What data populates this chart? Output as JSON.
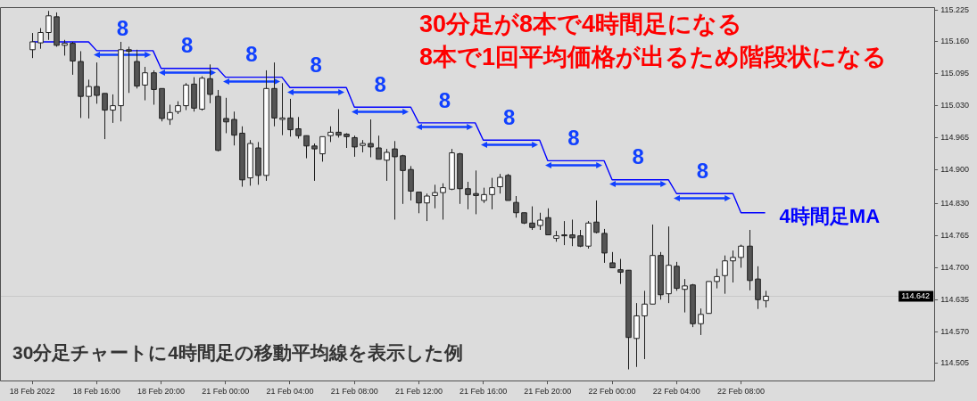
{
  "chart_data": {
    "type": "candlestick",
    "categories": [
      "18 Feb 2022",
      null,
      null,
      null,
      null,
      null,
      null,
      null,
      "18 Feb 16:00",
      null,
      null,
      null,
      null,
      null,
      null,
      null,
      "18 Feb 20:00",
      null,
      null,
      null,
      null,
      null,
      null,
      null,
      "21 Feb 00:00",
      null,
      null,
      null,
      null,
      null,
      null,
      null,
      "21 Feb 04:00",
      null,
      null,
      null,
      null,
      null,
      null,
      null,
      "21 Feb 08:00",
      null,
      null,
      null,
      null,
      null,
      null,
      null,
      "21 Feb 12:00",
      null,
      null,
      null,
      null,
      null,
      null,
      null,
      "21 Feb 16:00",
      null,
      null,
      null,
      null,
      null,
      null,
      null,
      "21 Feb 20:00",
      null,
      null,
      null,
      null,
      null,
      null,
      null,
      "22 Feb 00:00",
      null,
      null,
      null,
      null,
      null,
      null,
      null,
      "22 Feb 04:00",
      null,
      null,
      null,
      null,
      null,
      null,
      null,
      "22 Feb 08:00",
      null,
      null,
      null
    ],
    "ohlc": [
      [
        115.144,
        115.178,
        115.127,
        115.16
      ],
      [
        115.158,
        115.188,
        115.146,
        115.179
      ],
      [
        115.179,
        115.223,
        115.164,
        115.213
      ],
      [
        115.211,
        115.22,
        115.15,
        115.153
      ],
      [
        115.153,
        115.164,
        115.132,
        115.157
      ],
      [
        115.157,
        115.16,
        115.093,
        115.121
      ],
      [
        115.12,
        115.141,
        115.005,
        115.049
      ],
      [
        115.049,
        115.083,
        115.004,
        115.069
      ],
      [
        115.069,
        115.118,
        115.034,
        115.051
      ],
      [
        115.055,
        115.055,
        114.962,
        115.021
      ],
      [
        115.021,
        115.053,
        114.995,
        115.03
      ],
      [
        115.03,
        115.16,
        114.998,
        115.144
      ],
      [
        115.144,
        115.15,
        115.056,
        115.141
      ],
      [
        115.12,
        115.144,
        115.065,
        115.07
      ],
      [
        115.072,
        115.109,
        115.041,
        115.097
      ],
      [
        115.097,
        115.102,
        115.032,
        115.063
      ],
      [
        115.065,
        115.065,
        114.998,
        115.004
      ],
      [
        115.002,
        115.032,
        114.991,
        115.016
      ],
      [
        115.018,
        115.039,
        115.013,
        115.03
      ],
      [
        115.03,
        115.076,
        115.021,
        115.072
      ],
      [
        115.074,
        115.088,
        115.018,
        115.025
      ],
      [
        115.023,
        115.09,
        115.02,
        115.086
      ],
      [
        115.085,
        115.114,
        115.035,
        115.053
      ],
      [
        115.049,
        115.062,
        114.937,
        114.939
      ],
      [
        115.004,
        115.046,
        114.974,
        114.997
      ],
      [
        115.002,
        115.018,
        114.949,
        114.97
      ],
      [
        114.974,
        114.988,
        114.865,
        114.879
      ],
      [
        114.883,
        114.96,
        114.867,
        114.953
      ],
      [
        114.944,
        114.956,
        114.869,
        114.888
      ],
      [
        114.888,
        115.102,
        114.877,
        115.065
      ],
      [
        115.065,
        115.118,
        114.988,
        115.005
      ],
      [
        115.002,
        115.076,
        114.97,
        115.005
      ],
      [
        115.005,
        115.044,
        114.967,
        114.981
      ],
      [
        114.983,
        115.007,
        114.963,
        114.969
      ],
      [
        114.969,
        114.969,
        114.923,
        114.948
      ],
      [
        114.948,
        114.953,
        114.877,
        114.942
      ],
      [
        114.932,
        114.967,
        114.916,
        114.967
      ],
      [
        114.969,
        114.988,
        114.956,
        114.976
      ],
      [
        114.976,
        115.023,
        114.965,
        114.97
      ],
      [
        114.972,
        114.974,
        114.944,
        114.967
      ],
      [
        114.965,
        114.969,
        114.926,
        114.946
      ],
      [
        114.949,
        114.96,
        114.935,
        114.953
      ],
      [
        114.953,
        115.002,
        114.925,
        114.946
      ],
      [
        114.944,
        114.969,
        114.921,
        114.921
      ],
      [
        114.919,
        114.942,
        114.877,
        114.935
      ],
      [
        114.942,
        114.958,
        114.798,
        114.926
      ],
      [
        114.928,
        114.93,
        114.83,
        114.898
      ],
      [
        114.9,
        114.907,
        114.837,
        114.856
      ],
      [
        114.854,
        114.854,
        114.811,
        114.832
      ],
      [
        114.832,
        114.851,
        114.795,
        114.846
      ],
      [
        114.847,
        114.869,
        114.821,
        114.853
      ],
      [
        114.853,
        114.872,
        114.798,
        114.863
      ],
      [
        114.86,
        114.942,
        114.858,
        114.934
      ],
      [
        114.932,
        114.934,
        114.83,
        114.861
      ],
      [
        114.861,
        114.875,
        114.819,
        114.849
      ],
      [
        114.851,
        114.898,
        114.809,
        114.847
      ],
      [
        114.837,
        114.863,
        114.832,
        114.849
      ],
      [
        114.849,
        114.883,
        114.819,
        114.863
      ],
      [
        114.865,
        114.891,
        114.851,
        114.884
      ],
      [
        114.888,
        114.891,
        114.837,
        114.837
      ],
      [
        114.833,
        114.846,
        114.802,
        114.812
      ],
      [
        114.812,
        114.812,
        114.789,
        114.791
      ],
      [
        114.791,
        114.825,
        114.777,
        114.782
      ],
      [
        114.786,
        114.812,
        114.777,
        114.797
      ],
      [
        114.802,
        114.821,
        114.767,
        114.767
      ],
      [
        114.76,
        114.775,
        114.753,
        114.765
      ],
      [
        114.767,
        114.795,
        114.746,
        114.765
      ],
      [
        114.767,
        114.798,
        114.744,
        114.761
      ],
      [
        114.765,
        114.777,
        114.742,
        114.744
      ],
      [
        114.744,
        114.795,
        114.739,
        114.791
      ],
      [
        114.793,
        114.837,
        114.77,
        114.772
      ],
      [
        114.77,
        114.779,
        114.71,
        114.73
      ],
      [
        114.71,
        114.732,
        114.7,
        114.7
      ],
      [
        114.696,
        114.718,
        114.667,
        114.691
      ],
      [
        114.695,
        114.695,
        114.493,
        114.558
      ],
      [
        114.556,
        114.628,
        114.498,
        114.602
      ],
      [
        114.602,
        114.653,
        114.514,
        114.626
      ],
      [
        114.626,
        114.788,
        114.626,
        114.725
      ],
      [
        114.725,
        114.732,
        114.635,
        114.645
      ],
      [
        114.647,
        114.784,
        114.628,
        114.705
      ],
      [
        114.703,
        114.712,
        114.653,
        114.658
      ],
      [
        114.656,
        114.677,
        114.609,
        114.663
      ],
      [
        114.665,
        114.667,
        114.579,
        114.586
      ],
      [
        114.586,
        114.617,
        114.563,
        114.605
      ],
      [
        114.607,
        114.672,
        114.607,
        114.672
      ],
      [
        114.672,
        114.698,
        114.658,
        114.682
      ],
      [
        114.684,
        114.725,
        114.647,
        114.714
      ],
      [
        114.714,
        114.735,
        114.67,
        114.721
      ],
      [
        114.721,
        114.747,
        114.7,
        114.744
      ],
      [
        114.744,
        114.777,
        114.654,
        114.674
      ],
      [
        114.677,
        114.703,
        114.616,
        114.635
      ],
      [
        114.633,
        114.653,
        114.619,
        114.642
      ]
    ],
    "series": [
      {
        "name": "4時間足MA",
        "type": "line",
        "color": "#0000ff",
        "values": [
          115.16,
          115.16,
          115.16,
          115.16,
          115.16,
          115.16,
          115.16,
          115.16,
          115.142,
          115.142,
          115.142,
          115.142,
          115.142,
          115.142,
          115.142,
          115.142,
          115.106,
          115.106,
          115.106,
          115.106,
          115.106,
          115.106,
          115.106,
          115.106,
          115.088,
          115.088,
          115.088,
          115.088,
          115.088,
          115.088,
          115.088,
          115.088,
          115.067,
          115.067,
          115.067,
          115.067,
          115.067,
          115.067,
          115.067,
          115.067,
          115.027,
          115.027,
          115.027,
          115.027,
          115.027,
          115.027,
          115.027,
          115.027,
          114.995,
          114.995,
          114.995,
          114.995,
          114.995,
          114.995,
          114.995,
          114.995,
          114.96,
          114.96,
          114.96,
          114.96,
          114.96,
          114.96,
          114.96,
          114.96,
          114.918,
          114.918,
          114.918,
          114.918,
          114.918,
          114.918,
          114.918,
          114.918,
          114.879,
          114.879,
          114.879,
          114.879,
          114.879,
          114.879,
          114.879,
          114.879,
          114.851,
          114.851,
          114.851,
          114.851,
          114.851,
          114.851,
          114.851,
          114.851,
          114.812,
          114.812,
          114.812,
          114.812
        ]
      }
    ],
    "ylim": [
      114.47,
      115.23
    ],
    "yticks": [
      {
        "value": 115.225,
        "label": "115.225"
      },
      {
        "value": 115.16,
        "label": "115.160"
      },
      {
        "value": 115.095,
        "label": "115.095"
      },
      {
        "value": 115.03,
        "label": "115.030"
      },
      {
        "value": 114.965,
        "label": "114.965"
      },
      {
        "value": 114.9,
        "label": "114.900"
      },
      {
        "value": 114.83,
        "label": "114.830"
      },
      {
        "value": 114.765,
        "label": "114.765"
      },
      {
        "value": 114.7,
        "label": "114.700"
      },
      {
        "value": 114.635,
        "label": "114.635"
      },
      {
        "value": 114.57,
        "label": "114.570"
      },
      {
        "value": 114.505,
        "label": "114.505"
      }
    ],
    "ref_lines": [
      {
        "axis": "y",
        "value": 114.642,
        "label": "114.642",
        "color": "#c8c8c8"
      }
    ],
    "annotations": [
      "30分足が8本で4時間足になる",
      "8本で1回平均価格が出るため階段状になる",
      "30分足チャートに4時間足の移動平均線を表示した例",
      "8",
      "8",
      "8",
      "8",
      "8",
      "8",
      "8",
      "8",
      "8",
      "8"
    ]
  }
}
